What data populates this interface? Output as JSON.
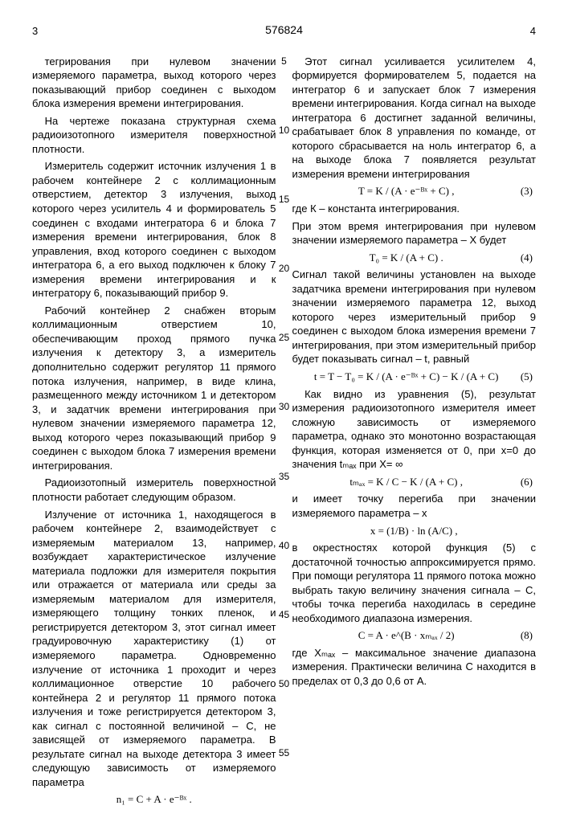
{
  "header": {
    "page_left": "3",
    "docnum": "576824",
    "page_right": "4"
  },
  "line_numbers": [
    "5",
    "10",
    "15",
    "20",
    "25",
    "30",
    "35",
    "40",
    "45",
    "50",
    "55"
  ],
  "left": {
    "p1": "тегрирования при нулевом значении измеряемого параметра, выход которого через показывающий прибор соединен с выходом блока измерения времени интегрирования.",
    "p2": "На чертеже показана структурная схема радиоизотопного измерителя поверхностной плотности.",
    "p3": "Измеритель содержит источник излучения 1 в рабочем контейнере 2 с коллимационным отверстием, детектор 3 излучения, выход которого через усилитель 4 и формирователь 5 соединен с входами интегратора 6 и блока 7 измерения времени интегрирования, блок 8 управления, вход которого соединен с выходом интегратора 6, а его выход подключен к блоку 7 измерения времени интегрирования и к интегратору 6, показывающий прибор 9.",
    "p4": "Рабочий контейнер 2 снабжен вторым коллимационным отверстием 10, обеспечивающим проход прямого пучка излучения к детектору 3, а измеритель дополнительно содержит регулятор 11 прямого потока излучения, например, в виде клина, размещенного между источником 1 и детектором 3, и задатчик времени интегрирования при нулевом значении измеряемого параметра 12, выход которого через показывающий прибор 9 соединен с выходом блока 7 измерения времени интегрирования.",
    "p5": "Радиоизотопный измеритель поверхностной плотности работает следующим образом.",
    "p6": "Излучение от источника 1, находящегося в рабочем контейнере 2, взаимодействует с измеряемым материалом 13, например, возбуждает характеристическое излучение материала подложки для измерителя покрытия или отражается от материала или среды за измеряемым материалом для измерителя, измеряющего толщину тонких пленок, и регистрируется детектором 3, этот сигнал имеет градуировочную характеристику (1) от измеряемого параметра. Одновременно излучение от источника 1 проходит и через коллимационное отверстие 10 рабочего контейнера 2 и регулятор 11 прямого потока излучения и тоже регистрируется детектором 3, как сигнал с постоянной величиной – С, не зависящей от измеряемого параметра. В результате сигнал на выходе детектора 3 имеет следующую зависимость от измеряемого параметра",
    "f1": "n₁ = C + A · e⁻ᴮˣ ."
  },
  "right": {
    "p1": "Этот сигнал усиливается усилителем 4, формируется формирователем 5, подается на интегратор 6 и запускает блок 7 измерения времени интегрирования. Когда сигнал на выходе интегратора 6 достигнет заданной величины, срабатывает блок 8 управления по команде, от которого сбрасывается на ноль интегратор 6, а на выходе блока 7 появляется результат измерения времени интегрирования",
    "f3": "T = K / (A · e⁻ᴮˣ + C) ,",
    "eq3": "(3)",
    "p2": "где К – константа интегрирования.",
    "p2b": "При этом время интегрирования при нулевом значении измеряемого параметра – Х будет",
    "f4": "T₀ = K / (A + C) .",
    "eq4": "(4)",
    "p3": "Сигнал такой величины установлен на выходе задатчика времени интегрирования при нулевом значении измеряемого параметра 12, выход которого через измерительный прибор 9 соединен с выходом блока измерения времени 7 интегрирования, при этом измерительный прибор будет показывать сигнал – t, равный",
    "f5": "t = T − T₀ = K / (A · e⁻ᴮˣ + C) − K / (A + C)",
    "eq5": "(5)",
    "p4": "Как видно из уравнения (5), результат измерения радиоизотопного измерителя имеет сложную зависимость от измеряемого параметра, однако это монотонно возрастающая функция, которая изменяется от 0, при x=0 до значения tₘₐₓ при X= ∞",
    "f6": "tₘₐₓ = K / C − K / (A + C) ,",
    "eq6": "(6)",
    "p5": "и имеет точку перегиба при значении измеряемого параметра – x",
    "f7": "x = (1/B) · ln (A/C) ,",
    "p6": "в окрестностях которой функция (5) с достаточной точностью аппроксимируется прямо. При помощи регулятора 11 прямого потока можно выбрать такую величину значения сигнала – С, чтобы точка перегиба находилась в середине необходимого диапазона измерения.",
    "f8": "C = A · e^(B · xₘₐₓ / 2)",
    "eq8": "(8)",
    "p7": "где Xₘₐₓ – максимальное значение диапазона измерения. Практически величина С находится в пределах от 0,3 до 0,6 от А."
  }
}
